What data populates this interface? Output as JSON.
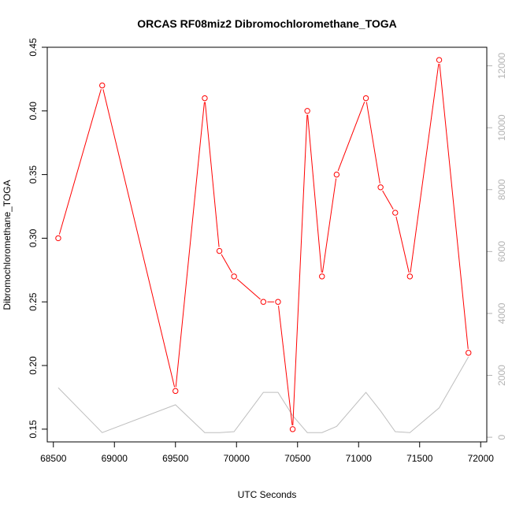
{
  "chart_data": {
    "type": "line",
    "title": "ORCAS RF08miz2 Dibromochloromethane_TOGA",
    "xlabel": "UTC Seconds",
    "ylabel": "Dibromochloromethane_TOGA",
    "xlim": [
      68450,
      72050
    ],
    "ylim": [
      0.14,
      0.45
    ],
    "y2lim": [
      -150,
      12600
    ],
    "x_ticks": [
      68500,
      69000,
      69500,
      70000,
      70500,
      71000,
      71500,
      72000
    ],
    "y_ticks": [
      0.15,
      0.2,
      0.25,
      0.3,
      0.35,
      0.4,
      0.45
    ],
    "y2_ticks": [
      0,
      2000,
      4000,
      6000,
      8000,
      10000,
      12000
    ],
    "y_tick_labels": [
      "0.15",
      "0.20",
      "0.25",
      "0.30",
      "0.35",
      "0.40",
      "0.45"
    ],
    "series": [
      {
        "color": "#ff0000",
        "axis": "left",
        "markers": true,
        "x": [
          68540,
          68900,
          69500,
          69740,
          69860,
          69980,
          70220,
          70340,
          70460,
          70580,
          70700,
          70820,
          71060,
          71180,
          71300,
          71420,
          71660,
          71900
        ],
        "y": [
          0.3,
          0.42,
          0.18,
          0.41,
          0.29,
          0.27,
          0.25,
          0.25,
          0.15,
          0.4,
          0.27,
          0.35,
          0.41,
          0.34,
          0.32,
          0.27,
          0.44,
          0.21
        ]
      },
      {
        "color": "#bebebe",
        "axis": "right",
        "markers": false,
        "x": [
          68540,
          68900,
          69500,
          69740,
          69860,
          69980,
          70220,
          70340,
          70460,
          70580,
          70700,
          70820,
          71060,
          71180,
          71300,
          71420,
          71660,
          71900
        ],
        "y": [
          1600,
          150,
          1050,
          150,
          150,
          180,
          1450,
          1450,
          700,
          150,
          150,
          350,
          1450,
          850,
          180,
          150,
          950,
          2600
        ]
      }
    ]
  }
}
